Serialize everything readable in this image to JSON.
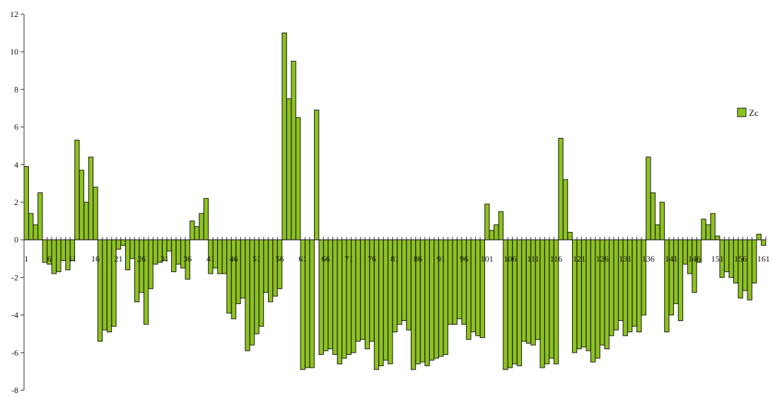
{
  "chart_data": {
    "type": "bar",
    "title": "",
    "xlabel": "",
    "ylabel": "",
    "ylim": [
      -8,
      12
    ],
    "yticks": [
      -8,
      -6,
      -4,
      -2,
      0,
      2,
      4,
      6,
      8,
      10,
      12
    ],
    "x_tick_labels": [
      "1",
      "6",
      "11",
      "16",
      "21",
      "26",
      "31",
      "36",
      "41",
      "46",
      "51",
      "56",
      "61",
      "66",
      "71",
      "76",
      "81",
      "86",
      "91",
      "96",
      "101",
      "106",
      "111",
      "116",
      "121",
      "126",
      "131",
      "136",
      "141",
      "146",
      "151",
      "156",
      "161"
    ],
    "grid": false,
    "legend_position": "right",
    "bar_color": "#8DC21F",
    "bar_edge_color": "#1a1a1a",
    "series": [
      {
        "name": "Zc",
        "values": [
          3.9,
          1.4,
          0.8,
          2.5,
          -1.2,
          -1.3,
          -1.8,
          -1.7,
          -1.1,
          -1.6,
          -1.1,
          5.3,
          3.7,
          2.0,
          4.4,
          2.8,
          -5.4,
          -4.8,
          -4.9,
          -4.6,
          -0.5,
          -0.3,
          -1.6,
          -1.0,
          -3.3,
          -2.8,
          -4.5,
          -2.6,
          -1.3,
          -1.2,
          -1.1,
          -0.6,
          -1.7,
          -1.3,
          -1.5,
          -2.1,
          1.0,
          0.7,
          1.4,
          2.2,
          -1.8,
          -1.5,
          -1.8,
          -1.8,
          -3.9,
          -4.2,
          -3.4,
          -3.1,
          -5.9,
          -5.6,
          -5.0,
          -4.6,
          -2.8,
          -3.3,
          -3.0,
          -2.6,
          11.0,
          7.5,
          9.5,
          6.5,
          -6.9,
          -6.8,
          -6.8,
          6.9,
          -6.1,
          -5.9,
          -5.8,
          -6.1,
          -6.6,
          -6.3,
          -6.1,
          -6.0,
          -5.4,
          -5.3,
          -5.8,
          -5.4,
          -6.9,
          -6.7,
          -6.4,
          -6.6,
          -4.9,
          -4.5,
          -4.3,
          -4.8,
          -6.9,
          -6.6,
          -6.5,
          -6.7,
          -6.4,
          -6.3,
          -6.2,
          -6.1,
          -4.5,
          -4.5,
          -4.2,
          -4.5,
          -5.3,
          -4.9,
          -5.1,
          -5.2,
          1.9,
          0.5,
          0.8,
          1.5,
          -6.9,
          -6.8,
          -6.6,
          -6.7,
          -5.4,
          -5.5,
          -5.6,
          -5.3,
          -6.8,
          -6.6,
          -6.3,
          -6.6,
          5.4,
          3.2,
          0.4,
          -6.0,
          -5.8,
          -5.7,
          -5.9,
          -6.5,
          -6.3,
          -5.6,
          -5.8,
          -5.1,
          -4.8,
          -4.3,
          -5.1,
          -4.9,
          -4.6,
          -4.9,
          -4.0,
          4.4,
          2.5,
          0.8,
          2.0,
          -4.9,
          -4.0,
          -3.4,
          -4.3,
          -1.3,
          -1.8,
          -2.8,
          -1.2,
          1.1,
          0.8,
          1.4,
          0.2,
          -2.0,
          -1.7,
          -2.0,
          -2.3,
          -3.1,
          -2.7,
          -3.2,
          -2.3,
          0.3,
          -0.3
        ]
      }
    ]
  }
}
